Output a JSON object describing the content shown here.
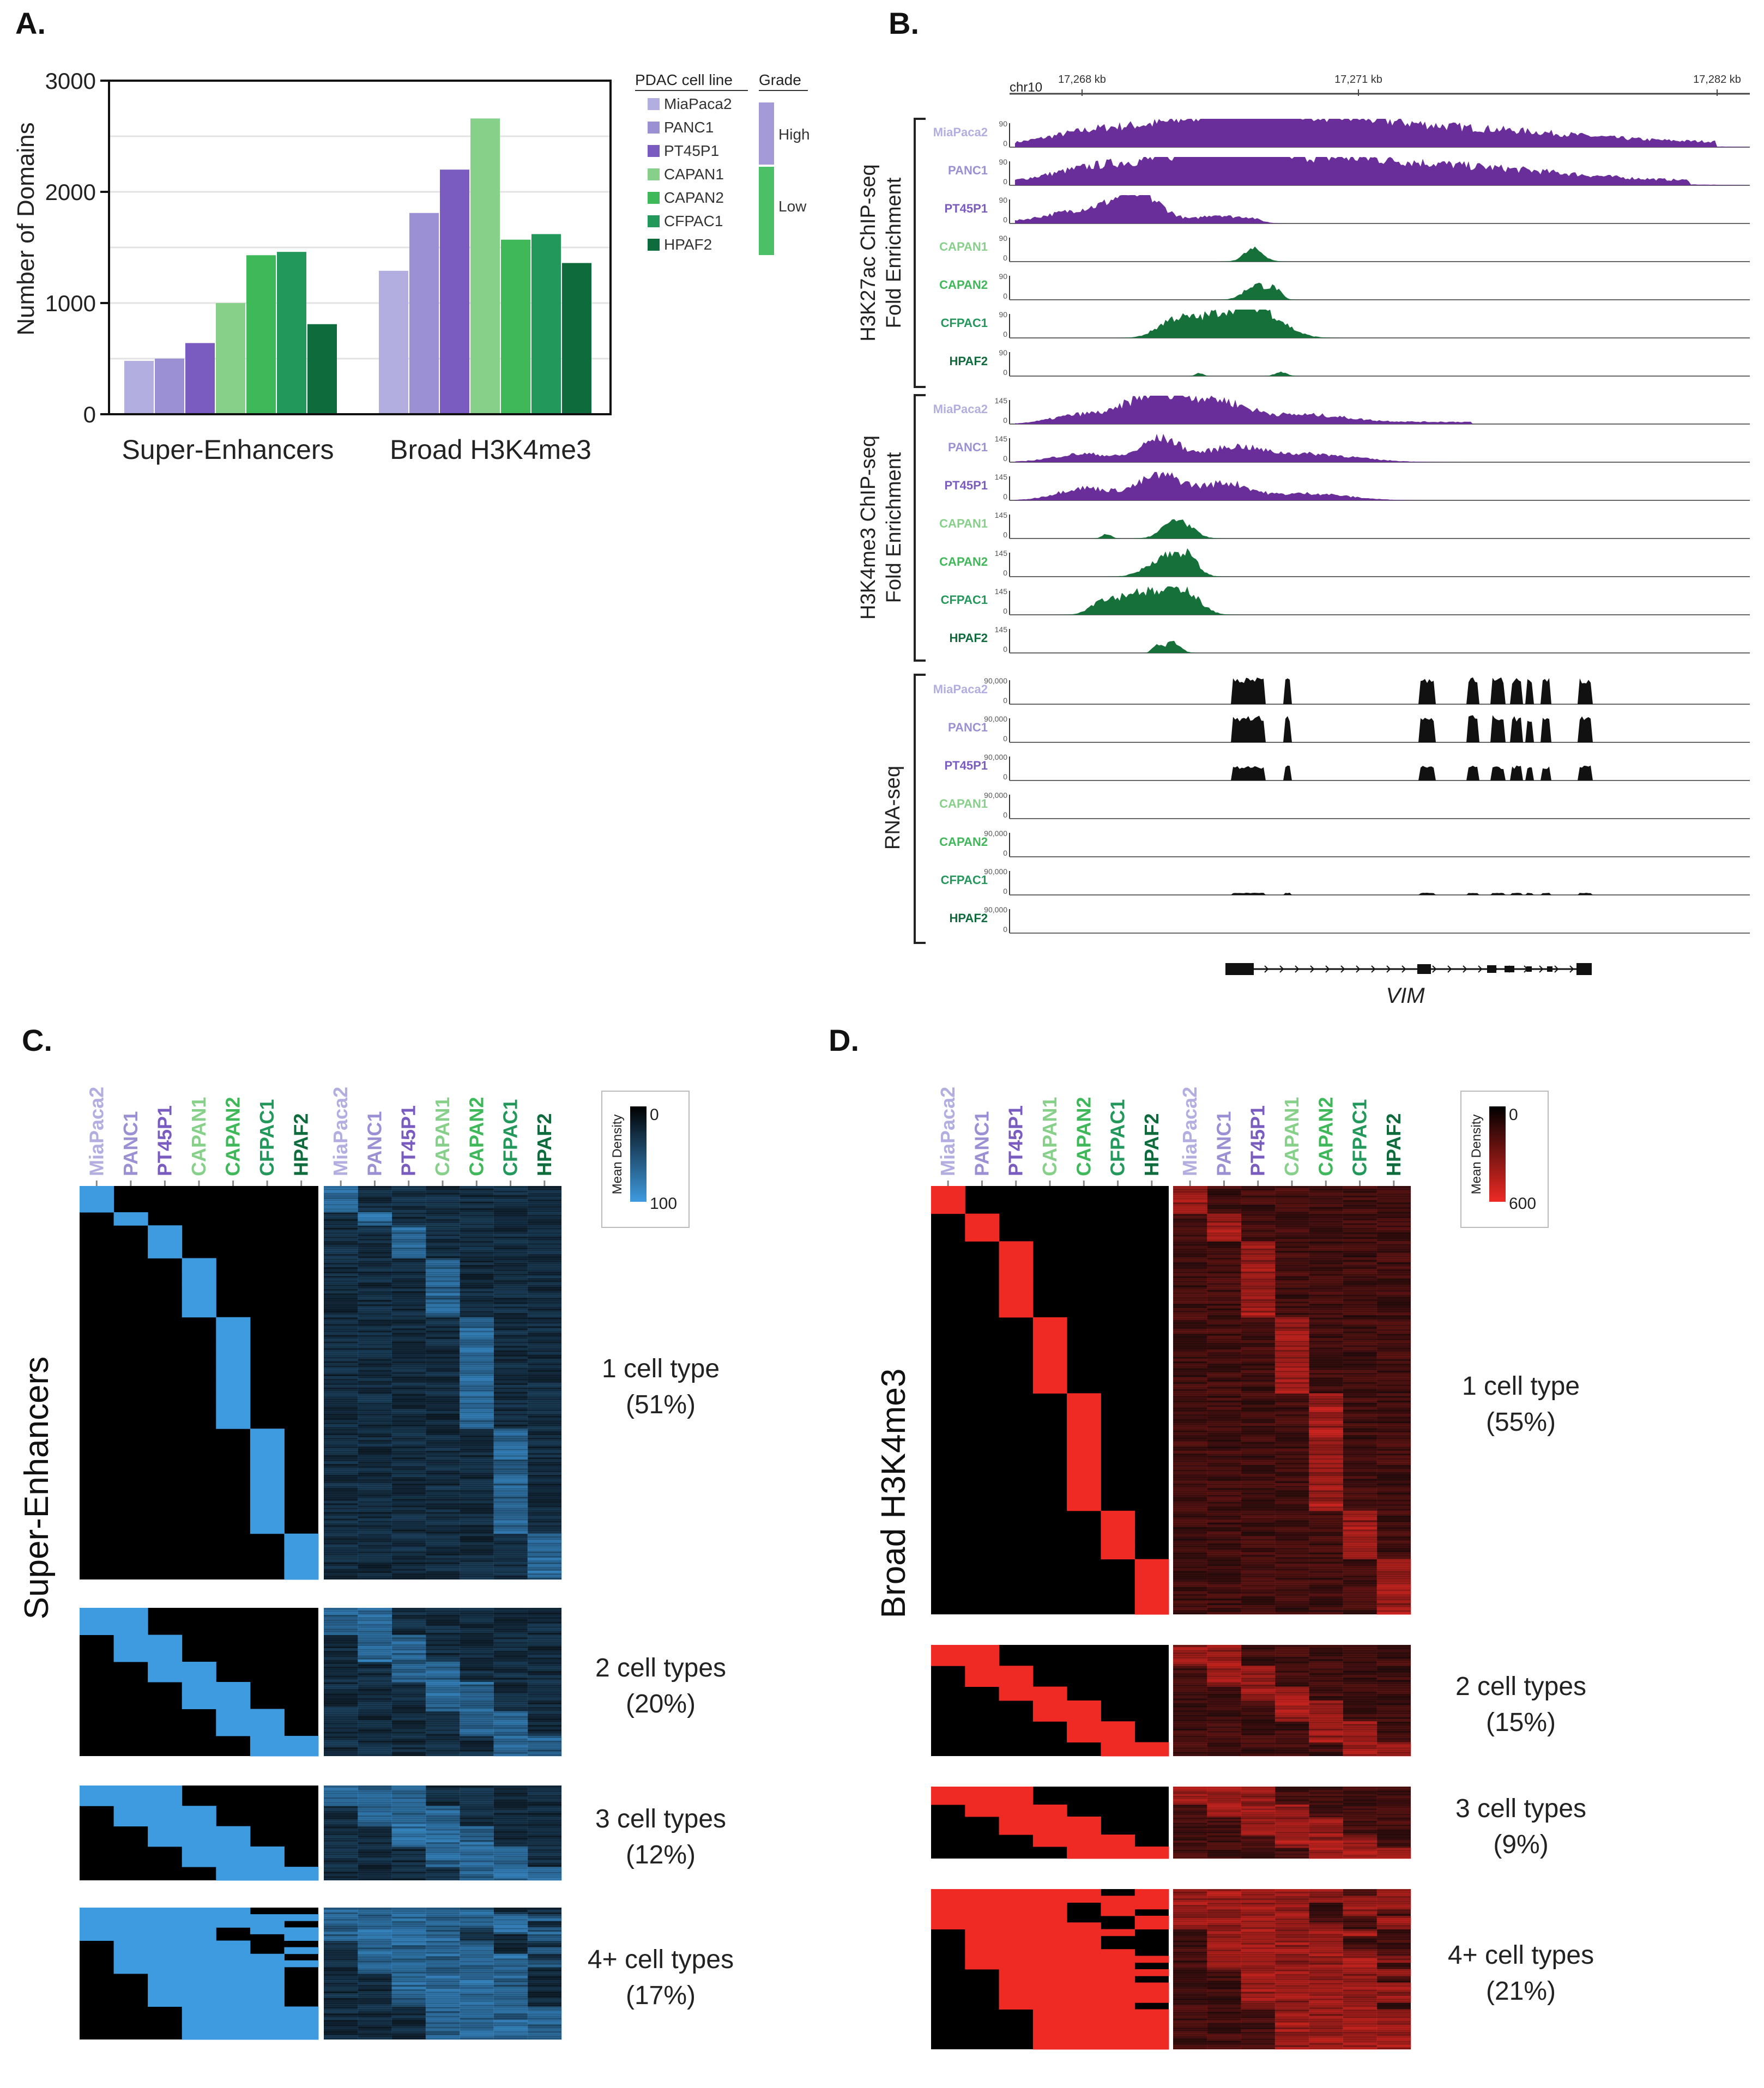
{
  "panels": {
    "a": "A.",
    "b": "B.",
    "c": "C.",
    "d": "D."
  },
  "colors": {
    "MiaPaca2": "#b3aee0",
    "PANC1": "#9a90d3",
    "PT45P1": "#7a5bbf",
    "CAPAN1": "#86d08a",
    "CAPAN2": "#3fb85a",
    "CFPAC1": "#22985a",
    "HPAF2": "#0d6b3c",
    "purple_signal": "#6a2e9a",
    "green_signal": "#16703a",
    "blue_heat": "#3f9be0",
    "red_heat": "#ef2a24"
  },
  "chart_data": [
    {
      "type": "bar",
      "panel": "A",
      "ylabel": "Number of Domains",
      "ylim": [
        0,
        3000
      ],
      "yticks": [
        "0",
        "1000",
        "2000",
        "3000"
      ],
      "categories": [
        "Super-Enhancers",
        "Broad H3K4me3"
      ],
      "series": [
        {
          "name": "MiaPaca2",
          "values": [
            480,
            1290
          ]
        },
        {
          "name": "PANC1",
          "values": [
            500,
            1810
          ]
        },
        {
          "name": "PT45P1",
          "values": [
            640,
            2200
          ]
        },
        {
          "name": "CAPAN1",
          "values": [
            1000,
            2660
          ]
        },
        {
          "name": "CAPAN2",
          "values": [
            1430,
            1570
          ]
        },
        {
          "name": "CFPAC1",
          "values": [
            1460,
            1620
          ]
        },
        {
          "name": "HPAF2",
          "values": [
            810,
            1360
          ]
        }
      ],
      "legend": {
        "header_line": "PDAC cell line",
        "header_grade": "Grade",
        "grades": [
          {
            "label": "High",
            "color": "#a49ad8"
          },
          {
            "label": "Low",
            "color": "#4cc066"
          }
        ]
      }
    },
    {
      "type": "area",
      "panel": "B",
      "chrom": "chr10",
      "coords": [
        "17,268 kb",
        "17,271 kb",
        "17,282 kb"
      ],
      "gene": "VIM",
      "groups": [
        {
          "label": "H3K27ac ChIP-seq",
          "sublabel": "Fold Enrichment",
          "tracks": [
            {
              "cell": "MiaPaca2",
              "max": "90"
            },
            {
              "cell": "PANC1",
              "max": "90"
            },
            {
              "cell": "PT45P1",
              "max": "90"
            },
            {
              "cell": "CAPAN1",
              "max": "90"
            },
            {
              "cell": "CAPAN2",
              "max": "90"
            },
            {
              "cell": "CFPAC1",
              "max": "90"
            },
            {
              "cell": "HPAF2",
              "max": "90"
            }
          ]
        },
        {
          "label": "H3K4me3 ChIP-seq",
          "sublabel": "Fold Enrichment",
          "tracks": [
            {
              "cell": "MiaPaca2",
              "max": "145"
            },
            {
              "cell": "PANC1",
              "max": "145"
            },
            {
              "cell": "PT45P1",
              "max": "145"
            },
            {
              "cell": "CAPAN1",
              "max": "145"
            },
            {
              "cell": "CAPAN2",
              "max": "145"
            },
            {
              "cell": "CFPAC1",
              "max": "145"
            },
            {
              "cell": "HPAF2",
              "max": "145"
            }
          ]
        },
        {
          "label": "RNA-seq",
          "sublabel": "",
          "tracks": [
            {
              "cell": "MiaPaca2",
              "max": "90,000"
            },
            {
              "cell": "PANC1",
              "max": "90,000"
            },
            {
              "cell": "PT45P1",
              "max": "90,000"
            },
            {
              "cell": "CAPAN1",
              "max": "90,000"
            },
            {
              "cell": "CAPAN2",
              "max": "90,000"
            },
            {
              "cell": "CFPAC1",
              "max": "90,000"
            },
            {
              "cell": "HPAF2",
              "max": "90,000"
            }
          ]
        }
      ]
    },
    {
      "type": "heatmap",
      "panel": "C",
      "title": "Super-Enhancers",
      "columns": [
        "MiaPaca2",
        "PANC1",
        "PT45P1",
        "CAPAN1",
        "CAPAN2",
        "CFPAC1",
        "HPAF2"
      ],
      "colorbar": {
        "label": "Mean Density",
        "min": "0",
        "max": "100"
      },
      "blocks": [
        {
          "line1": "1 cell type",
          "line2": "(51%)",
          "percent": 51
        },
        {
          "line1": "2 cell types",
          "line2": "(20%)",
          "percent": 20
        },
        {
          "line1": "3 cell types",
          "line2": "(12%)",
          "percent": 12
        },
        {
          "line1": "4+ cell types",
          "line2": "(17%)",
          "percent": 17
        }
      ]
    },
    {
      "type": "heatmap",
      "panel": "D",
      "title": "Broad H3K4me3",
      "columns": [
        "MiaPaca2",
        "PANC1",
        "PT45P1",
        "CAPAN1",
        "CAPAN2",
        "CFPAC1",
        "HPAF2"
      ],
      "colorbar": {
        "label": "Mean Density",
        "min": "0",
        "max": "600"
      },
      "blocks": [
        {
          "line1": "1 cell type",
          "line2": "(55%)",
          "percent": 55
        },
        {
          "line1": "2 cell types",
          "line2": "(15%)",
          "percent": 15
        },
        {
          "line1": "3 cell types",
          "line2": "(9%)",
          "percent": 9
        },
        {
          "line1": "4+ cell types",
          "line2": "(21%)",
          "percent": 21
        }
      ]
    }
  ]
}
